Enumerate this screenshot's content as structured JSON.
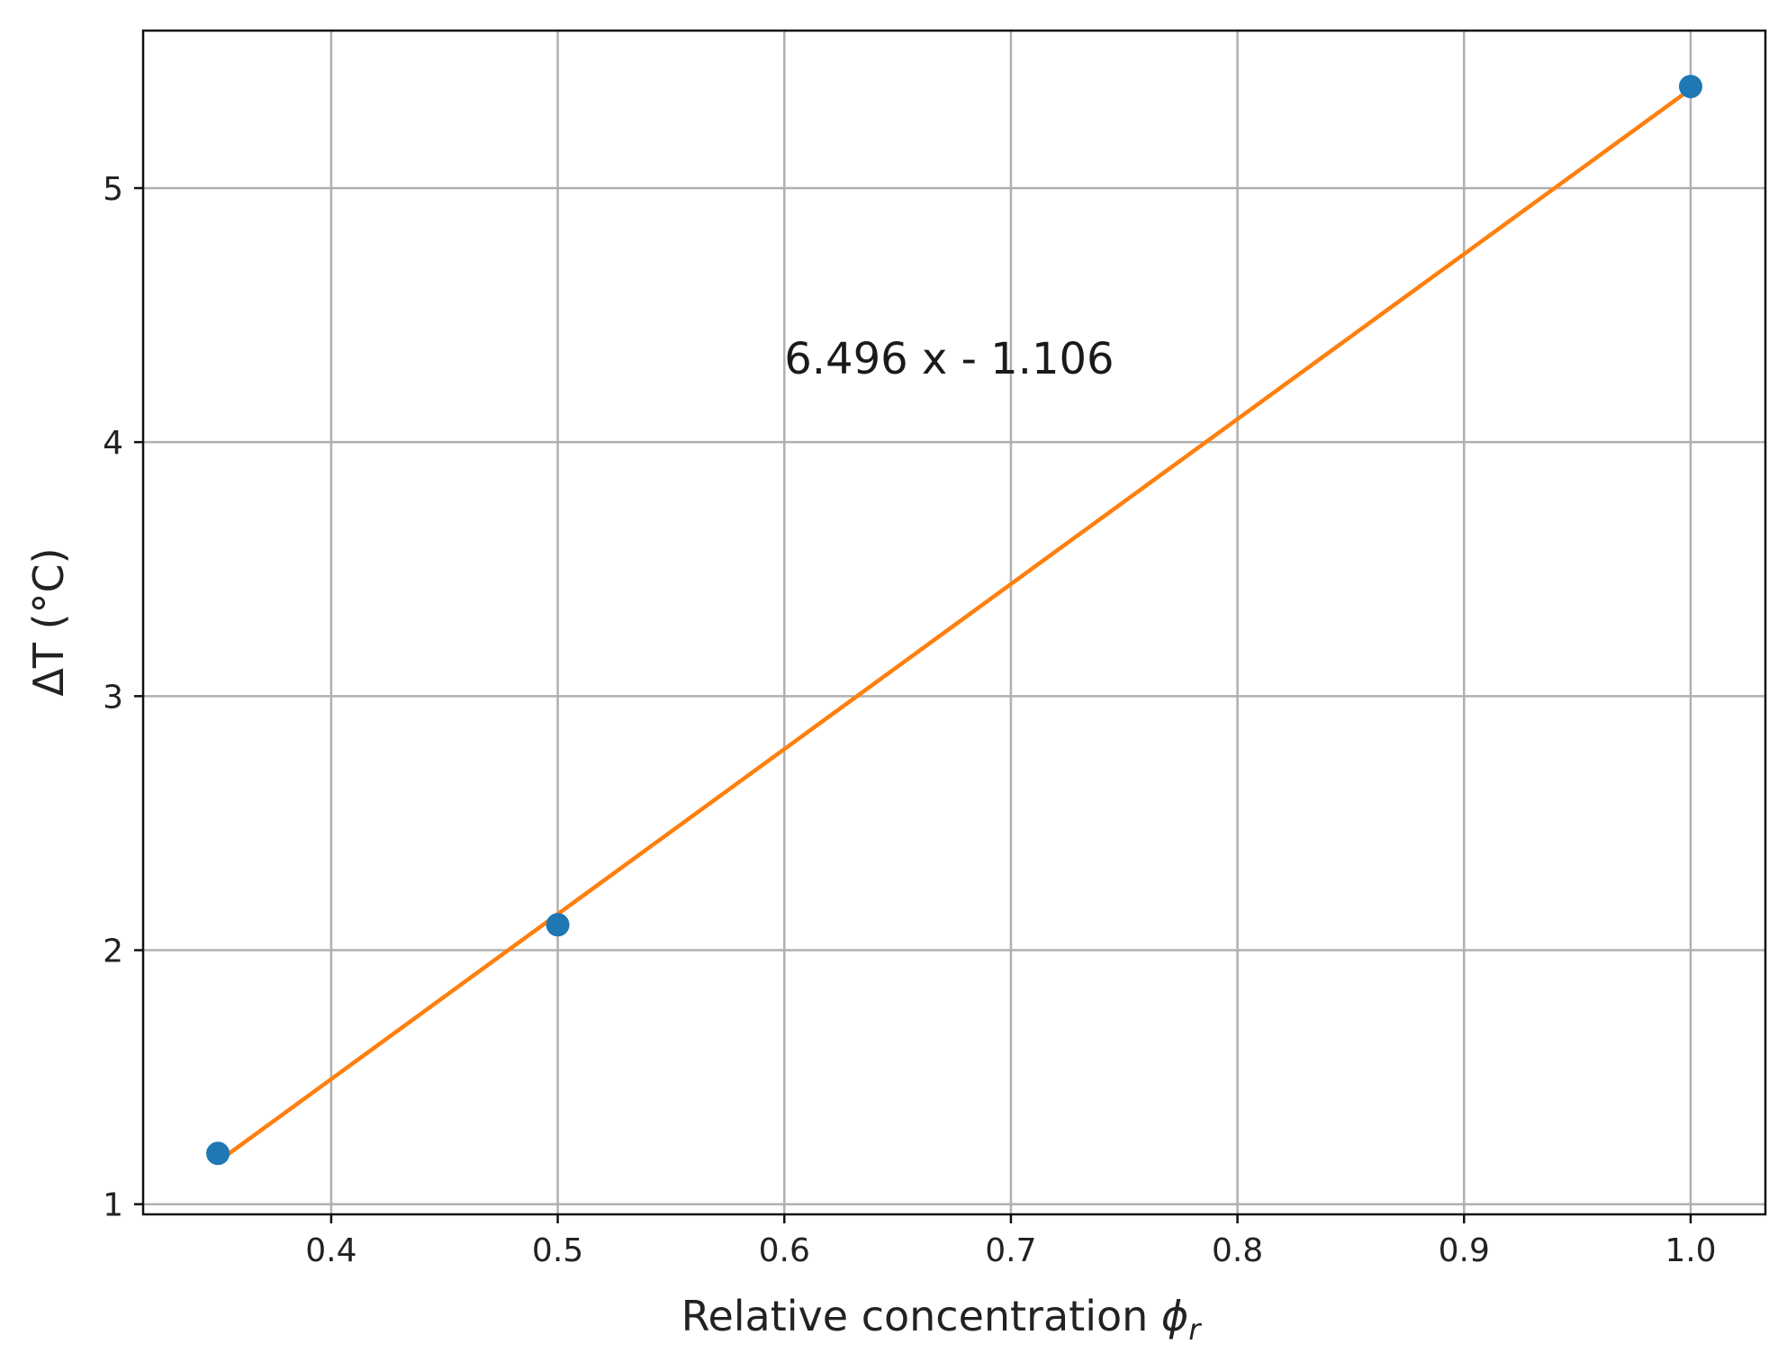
{
  "chart_data": {
    "type": "scatter",
    "xlabel": "Relative concentration",
    "xlabel_symbol": "ϕ",
    "xlabel_subscript": "r",
    "ylabel": "ΔT (°C)",
    "xlim": [
      0.317,
      1.033
    ],
    "ylim": [
      0.96,
      5.62
    ],
    "x_ticks": [
      0.4,
      0.5,
      0.6,
      0.7,
      0.8,
      0.9,
      1.0
    ],
    "x_tick_labels": [
      "0.4",
      "0.5",
      "0.6",
      "0.7",
      "0.8",
      "0.9",
      "1.0"
    ],
    "y_ticks": [
      1,
      2,
      3,
      4,
      5
    ],
    "y_tick_labels": [
      "1",
      "2",
      "3",
      "4",
      "5"
    ],
    "grid": true,
    "series": [
      {
        "kind": "points",
        "color": "#1f77b4",
        "points": [
          {
            "x": 0.35,
            "y": 1.2
          },
          {
            "x": 0.5,
            "y": 2.1
          },
          {
            "x": 1.0,
            "y": 5.4
          }
        ]
      },
      {
        "kind": "fit-line",
        "color": "#ff7f0e",
        "slope": 6.496,
        "intercept": -1.106,
        "x_range": [
          0.35,
          1.0
        ]
      }
    ],
    "annotations": [
      {
        "text": "6.496 x - 1.106",
        "x": 0.6,
        "y": 4.27
      }
    ]
  }
}
